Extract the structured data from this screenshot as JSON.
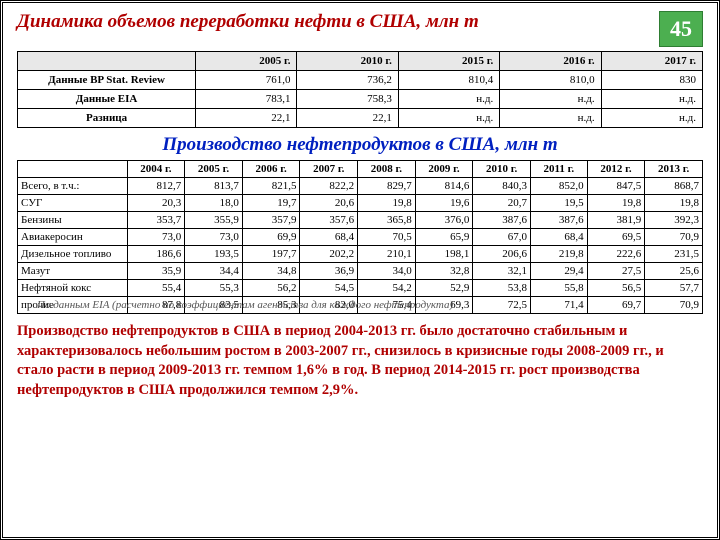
{
  "slide_number": "45",
  "main_title": "Динамика объемов переработки нефти в США, млн т",
  "table1": {
    "header_empty": "",
    "columns": [
      "2005 г.",
      "2010 г.",
      "2015 г.",
      "2016 г.",
      "2017 г."
    ],
    "rows": [
      {
        "label": "Данные BP Stat. Review",
        "cells": [
          "761,0",
          "736,2",
          "810,4",
          "810,0",
          "830"
        ]
      },
      {
        "label": "Данные EIA",
        "cells": [
          "783,1",
          "758,3",
          "н.д.",
          "н.д.",
          "н.д."
        ]
      },
      {
        "label": "Разница",
        "cells": [
          "22,1",
          "22,1",
          "н.д.",
          "н.д.",
          "н.д."
        ]
      }
    ],
    "header_bg": "#e8e8e8",
    "border_color": "#000000"
  },
  "subtitle": "Производство нефтепродуктов в США, млн т",
  "table2": {
    "columns": [
      "2004 г.",
      "2005 г.",
      "2006 г.",
      "2007 г.",
      "2008 г.",
      "2009 г.",
      "2010 г.",
      "2011 г.",
      "2012 г.",
      "2013 г."
    ],
    "rows": [
      {
        "label": "Всего, в т.ч.:",
        "cells": [
          "812,7",
          "813,7",
          "821,5",
          "822,2",
          "829,7",
          "814,6",
          "840,3",
          "852,0",
          "847,5",
          "868,7"
        ]
      },
      {
        "label": "СУГ",
        "cells": [
          "20,3",
          "18,0",
          "19,7",
          "20,6",
          "19,8",
          "19,6",
          "20,7",
          "19,5",
          "19,8",
          "19,8"
        ]
      },
      {
        "label": "Бензины",
        "cells": [
          "353,7",
          "355,9",
          "357,9",
          "357,6",
          "365,8",
          "376,0",
          "387,6",
          "387,6",
          "381,9",
          "392,3"
        ]
      },
      {
        "label": "Авиакеросин",
        "cells": [
          "73,0",
          "73,0",
          "69,9",
          "68,4",
          "70,5",
          "65,9",
          "67,0",
          "68,4",
          "69,5",
          "70,9"
        ]
      },
      {
        "label": "Дизельное топливо",
        "cells": [
          "186,6",
          "193,5",
          "197,7",
          "202,2",
          "210,1",
          "198,1",
          "206,6",
          "219,8",
          "222,6",
          "231,5"
        ]
      },
      {
        "label": "Мазут",
        "cells": [
          "35,9",
          "34,4",
          "34,8",
          "36,9",
          "34,0",
          "32,8",
          "32,1",
          "29,4",
          "27,5",
          "25,6"
        ]
      },
      {
        "label": "Нефтяной кокс",
        "cells": [
          "55,4",
          "55,3",
          "56,2",
          "54,5",
          "54,2",
          "52,9",
          "53,8",
          "55,8",
          "56,5",
          "57,7"
        ]
      },
      {
        "label": "прочие",
        "cells": [
          "87,8",
          "83,5",
          "85,3",
          "82,0",
          "75,4",
          "69,3",
          "72,5",
          "71,4",
          "69,7",
          "70,9"
        ]
      }
    ],
    "border_color": "#000000"
  },
  "footnote": "По данным EIA (расчетно по коэффициентам агентства для каждого нефтепродукта)",
  "body_text": "Производство нефтепродуктов в США в период 2004-2013 гг. было достаточно стабильным и характеризовалось небольшим ростом в 2003-2007 гг., снизилось в кризисные годы 2008-2009 гг., и стало расти в период 2009-2013 гг. темпом 1,6% в год. В период 2014-2015 гг.  рост производства нефтепродуктов в США продолжился темпом 2,9%.",
  "colors": {
    "title_red": "#b00000",
    "subtitle_blue": "#0020c0",
    "slide_box_bg": "#4caf50",
    "slide_box_border": "#2e7d32",
    "background": "#ffffff"
  }
}
